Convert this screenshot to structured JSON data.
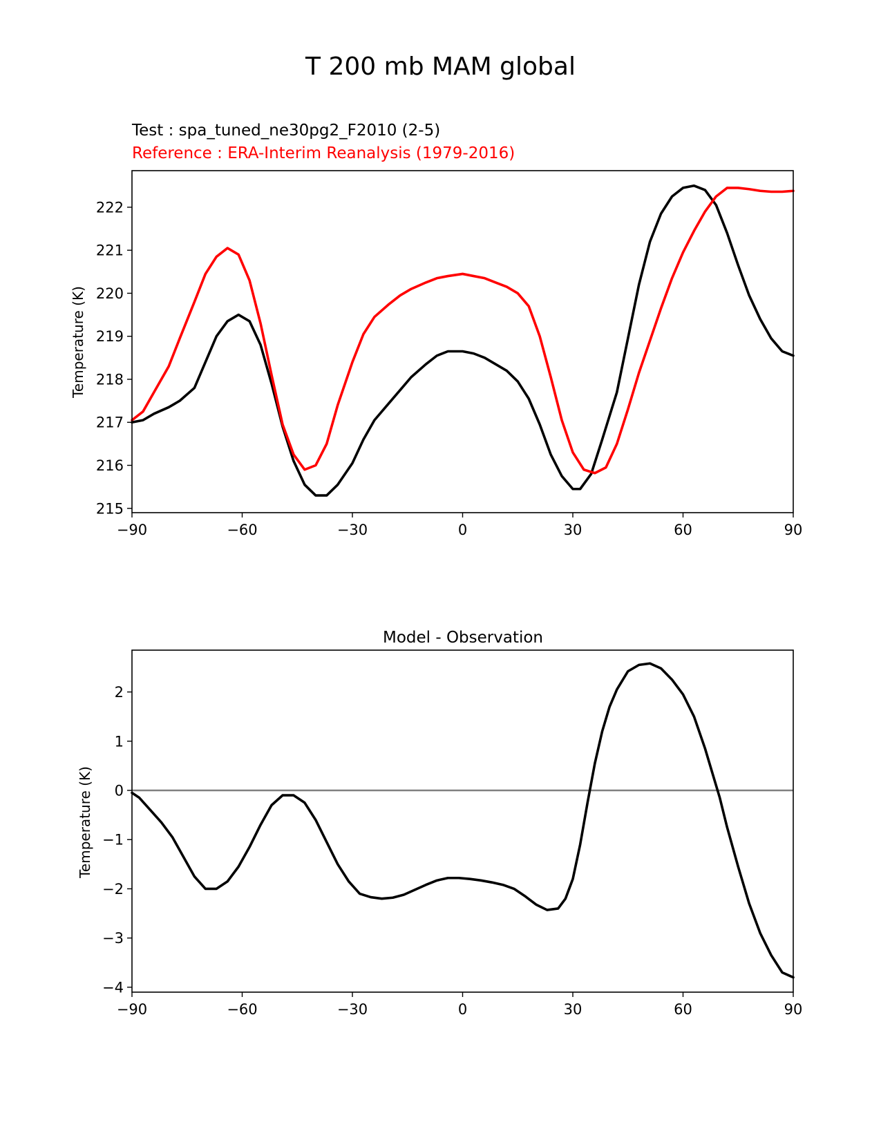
{
  "figure": {
    "title": "T 200 mb MAM global"
  },
  "chart_data": [
    {
      "type": "line",
      "test_label": "Test : spa_tuned_ne30pg2_F2010 (2-5)",
      "reference_label": "Reference : ERA-Interim Reanalysis (1979-2016)",
      "xlabel": "",
      "ylabel": "Temperature (K)",
      "xlim": [
        -90,
        90
      ],
      "ylim": [
        214.9,
        222.85
      ],
      "xticks": [
        -90,
        -60,
        -30,
        0,
        30,
        60,
        90
      ],
      "xtick_labels": [
        "−90",
        "−60",
        "−30",
        "0",
        "30",
        "60",
        "90"
      ],
      "yticks": [
        215,
        216,
        217,
        218,
        219,
        220,
        221,
        222
      ],
      "ytick_labels": [
        "215",
        "216",
        "217",
        "218",
        "219",
        "220",
        "221",
        "222"
      ],
      "grid": false,
      "series": [
        {
          "color": "#000000",
          "points": [
            [
              -90,
              217.0
            ],
            [
              -87,
              217.05
            ],
            [
              -84,
              217.2
            ],
            [
              -80,
              217.35
            ],
            [
              -77,
              217.5
            ],
            [
              -73,
              217.8
            ],
            [
              -70,
              218.4
            ],
            [
              -67,
              219.0
            ],
            [
              -64,
              219.35
            ],
            [
              -61,
              219.5
            ],
            [
              -58,
              219.35
            ],
            [
              -55,
              218.8
            ],
            [
              -52,
              217.9
            ],
            [
              -49,
              216.9
            ],
            [
              -46,
              216.1
            ],
            [
              -43,
              215.55
            ],
            [
              -40,
              215.3
            ],
            [
              -37,
              215.3
            ],
            [
              -34,
              215.55
            ],
            [
              -30,
              216.05
            ],
            [
              -27,
              216.6
            ],
            [
              -24,
              217.05
            ],
            [
              -20,
              217.45
            ],
            [
              -17,
              217.75
            ],
            [
              -14,
              218.05
            ],
            [
              -10,
              218.35
            ],
            [
              -7,
              218.55
            ],
            [
              -4,
              218.65
            ],
            [
              0,
              218.65
            ],
            [
              3,
              218.6
            ],
            [
              6,
              218.5
            ],
            [
              9,
              218.35
            ],
            [
              12,
              218.2
            ],
            [
              15,
              217.95
            ],
            [
              18,
              217.55
            ],
            [
              21,
              216.95
            ],
            [
              24,
              216.25
            ],
            [
              27,
              215.75
            ],
            [
              30,
              215.45
            ],
            [
              32,
              215.45
            ],
            [
              35,
              215.8
            ],
            [
              38,
              216.6
            ],
            [
              42,
              217.7
            ],
            [
              45,
              218.95
            ],
            [
              48,
              220.2
            ],
            [
              51,
              221.2
            ],
            [
              54,
              221.85
            ],
            [
              57,
              222.25
            ],
            [
              60,
              222.45
            ],
            [
              63,
              222.5
            ],
            [
              66,
              222.4
            ],
            [
              69,
              222.05
            ],
            [
              72,
              221.4
            ],
            [
              75,
              220.65
            ],
            [
              78,
              219.95
            ],
            [
              81,
              219.4
            ],
            [
              84,
              218.95
            ],
            [
              87,
              218.65
            ],
            [
              90,
              218.55
            ]
          ]
        },
        {
          "color": "#ff0000",
          "points": [
            [
              -90,
              217.05
            ],
            [
              -87,
              217.25
            ],
            [
              -84,
              217.7
            ],
            [
              -80,
              218.3
            ],
            [
              -77,
              218.95
            ],
            [
              -73,
              219.8
            ],
            [
              -70,
              220.45
            ],
            [
              -67,
              220.85
            ],
            [
              -64,
              221.05
            ],
            [
              -61,
              220.9
            ],
            [
              -58,
              220.3
            ],
            [
              -55,
              219.3
            ],
            [
              -52,
              218.1
            ],
            [
              -49,
              216.95
            ],
            [
              -46,
              216.25
            ],
            [
              -43,
              215.9
            ],
            [
              -40,
              216.0
            ],
            [
              -37,
              216.5
            ],
            [
              -34,
              217.4
            ],
            [
              -30,
              218.4
            ],
            [
              -27,
              219.05
            ],
            [
              -24,
              219.45
            ],
            [
              -20,
              219.75
            ],
            [
              -17,
              219.95
            ],
            [
              -14,
              220.1
            ],
            [
              -10,
              220.25
            ],
            [
              -7,
              220.35
            ],
            [
              -4,
              220.4
            ],
            [
              0,
              220.45
            ],
            [
              3,
              220.4
            ],
            [
              6,
              220.35
            ],
            [
              9,
              220.25
            ],
            [
              12,
              220.15
            ],
            [
              15,
              220.0
            ],
            [
              18,
              219.7
            ],
            [
              21,
              219.0
            ],
            [
              24,
              218.05
            ],
            [
              27,
              217.05
            ],
            [
              30,
              216.3
            ],
            [
              33,
              215.9
            ],
            [
              36,
              215.82
            ],
            [
              39,
              215.95
            ],
            [
              42,
              216.5
            ],
            [
              45,
              217.3
            ],
            [
              48,
              218.15
            ],
            [
              51,
              218.9
            ],
            [
              54,
              219.65
            ],
            [
              57,
              220.35
            ],
            [
              60,
              220.95
            ],
            [
              63,
              221.45
            ],
            [
              66,
              221.9
            ],
            [
              69,
              222.25
            ],
            [
              72,
              222.45
            ],
            [
              75,
              222.45
            ],
            [
              78,
              222.42
            ],
            [
              81,
              222.38
            ],
            [
              84,
              222.36
            ],
            [
              87,
              222.36
            ],
            [
              90,
              222.38
            ]
          ]
        }
      ]
    },
    {
      "type": "line",
      "title": "Model - Observation",
      "xlabel": "",
      "ylabel": "Temperature (K)",
      "xlim": [
        -90,
        90
      ],
      "ylim": [
        -4.1,
        2.85
      ],
      "xticks": [
        -90,
        -60,
        -30,
        0,
        30,
        60,
        90
      ],
      "xtick_labels": [
        "−90",
        "−60",
        "−30",
        "0",
        "30",
        "60",
        "90"
      ],
      "yticks": [
        -4,
        -3,
        -2,
        -1,
        0,
        1,
        2
      ],
      "ytick_labels": [
        "−4",
        "−3",
        "−2",
        "−1",
        "0",
        "1",
        "2"
      ],
      "grid": false,
      "zero_line_color": "#808080",
      "series": [
        {
          "color": "#000000",
          "points": [
            [
              -90,
              -0.05
            ],
            [
              -88,
              -0.15
            ],
            [
              -85,
              -0.4
            ],
            [
              -82,
              -0.65
            ],
            [
              -79,
              -0.95
            ],
            [
              -76,
              -1.35
            ],
            [
              -73,
              -1.75
            ],
            [
              -70,
              -2.0
            ],
            [
              -67,
              -2.0
            ],
            [
              -64,
              -1.85
            ],
            [
              -61,
              -1.55
            ],
            [
              -58,
              -1.15
            ],
            [
              -55,
              -0.7
            ],
            [
              -52,
              -0.3
            ],
            [
              -49,
              -0.1
            ],
            [
              -46,
              -0.1
            ],
            [
              -43,
              -0.25
            ],
            [
              -40,
              -0.6
            ],
            [
              -37,
              -1.05
            ],
            [
              -34,
              -1.5
            ],
            [
              -31,
              -1.85
            ],
            [
              -28,
              -2.1
            ],
            [
              -25,
              -2.17
            ],
            [
              -22,
              -2.2
            ],
            [
              -19,
              -2.18
            ],
            [
              -16,
              -2.12
            ],
            [
              -13,
              -2.02
            ],
            [
              -10,
              -1.92
            ],
            [
              -7,
              -1.83
            ],
            [
              -4,
              -1.78
            ],
            [
              -1,
              -1.78
            ],
            [
              2,
              -1.8
            ],
            [
              5,
              -1.83
            ],
            [
              8,
              -1.87
            ],
            [
              11,
              -1.92
            ],
            [
              14,
              -2.0
            ],
            [
              17,
              -2.15
            ],
            [
              20,
              -2.32
            ],
            [
              23,
              -2.43
            ],
            [
              26,
              -2.4
            ],
            [
              28,
              -2.2
            ],
            [
              30,
              -1.8
            ],
            [
              32,
              -1.1
            ],
            [
              34,
              -0.25
            ],
            [
              36,
              0.55
            ],
            [
              38,
              1.2
            ],
            [
              40,
              1.7
            ],
            [
              42,
              2.05
            ],
            [
              45,
              2.42
            ],
            [
              48,
              2.55
            ],
            [
              51,
              2.58
            ],
            [
              54,
              2.48
            ],
            [
              57,
              2.25
            ],
            [
              60,
              1.95
            ],
            [
              63,
              1.5
            ],
            [
              66,
              0.85
            ],
            [
              68,
              0.35
            ],
            [
              70,
              -0.15
            ],
            [
              72,
              -0.75
            ],
            [
              75,
              -1.55
            ],
            [
              78,
              -2.3
            ],
            [
              81,
              -2.9
            ],
            [
              84,
              -3.35
            ],
            [
              87,
              -3.7
            ],
            [
              90,
              -3.8
            ]
          ]
        }
      ]
    }
  ]
}
